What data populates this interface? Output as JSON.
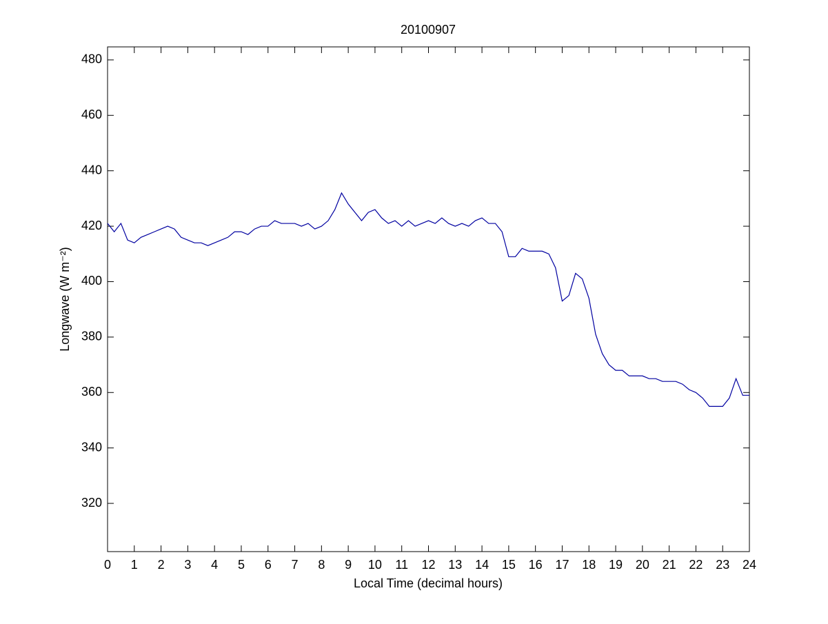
{
  "chart_data": {
    "type": "line",
    "title": "20100907",
    "xlabel": "Local Time (decimal hours)",
    "ylabel": "Longwave (W m⁻²)",
    "xlim": [
      0,
      24
    ],
    "ylim": [
      302.6,
      484.7
    ],
    "xticks": [
      0,
      1,
      2,
      3,
      4,
      5,
      6,
      7,
      8,
      9,
      10,
      11,
      12,
      13,
      14,
      15,
      16,
      17,
      18,
      19,
      20,
      21,
      22,
      23,
      24
    ],
    "yticks": [
      320,
      340,
      360,
      380,
      400,
      420,
      440,
      460,
      480
    ],
    "grid": false,
    "x": [
      0,
      0.25,
      0.5,
      0.75,
      1,
      1.25,
      1.5,
      1.75,
      2,
      2.25,
      2.5,
      2.75,
      3,
      3.25,
      3.5,
      3.75,
      4,
      4.25,
      4.5,
      4.75,
      5,
      5.25,
      5.5,
      5.75,
      6,
      6.25,
      6.5,
      6.75,
      7,
      7.25,
      7.5,
      7.75,
      8,
      8.25,
      8.5,
      8.75,
      9,
      9.25,
      9.5,
      9.75,
      10,
      10.25,
      10.5,
      10.75,
      11,
      11.25,
      11.5,
      11.75,
      12,
      12.25,
      12.5,
      12.75,
      13,
      13.25,
      13.5,
      13.75,
      14,
      14.25,
      14.5,
      14.75,
      15,
      15.25,
      15.5,
      15.75,
      16,
      16.25,
      16.5,
      16.75,
      17,
      17.25,
      17.5,
      17.75,
      18,
      18.25,
      18.5,
      18.75,
      19,
      19.25,
      19.5,
      19.75,
      20,
      20.25,
      20.5,
      20.75,
      21,
      21.25,
      21.5,
      21.75,
      22,
      22.25,
      22.5,
      22.75,
      23,
      23.25,
      23.5,
      23.75,
      24
    ],
    "series": [
      {
        "color": "#0000a0",
        "values": [
          421,
          418,
          421,
          415,
          414,
          416,
          417,
          418,
          419,
          420,
          419,
          416,
          415,
          414,
          414,
          413,
          414,
          415,
          416,
          418,
          418,
          417,
          419,
          420,
          420,
          422,
          421,
          421,
          421,
          420,
          421,
          419,
          420,
          422,
          426,
          432,
          428,
          425,
          422,
          425,
          426,
          423,
          421,
          422,
          420,
          422,
          420,
          421,
          422,
          421,
          423,
          421,
          420,
          421,
          420,
          422,
          423,
          421,
          421,
          418,
          409,
          409,
          412,
          411,
          411,
          411,
          410,
          405,
          393,
          395,
          403,
          401,
          394,
          381,
          374,
          370,
          368,
          368,
          366,
          366,
          366,
          365,
          365,
          364,
          364,
          364,
          363,
          361,
          360,
          358,
          355,
          355,
          355,
          358,
          365,
          359,
          359
        ]
      }
    ]
  }
}
